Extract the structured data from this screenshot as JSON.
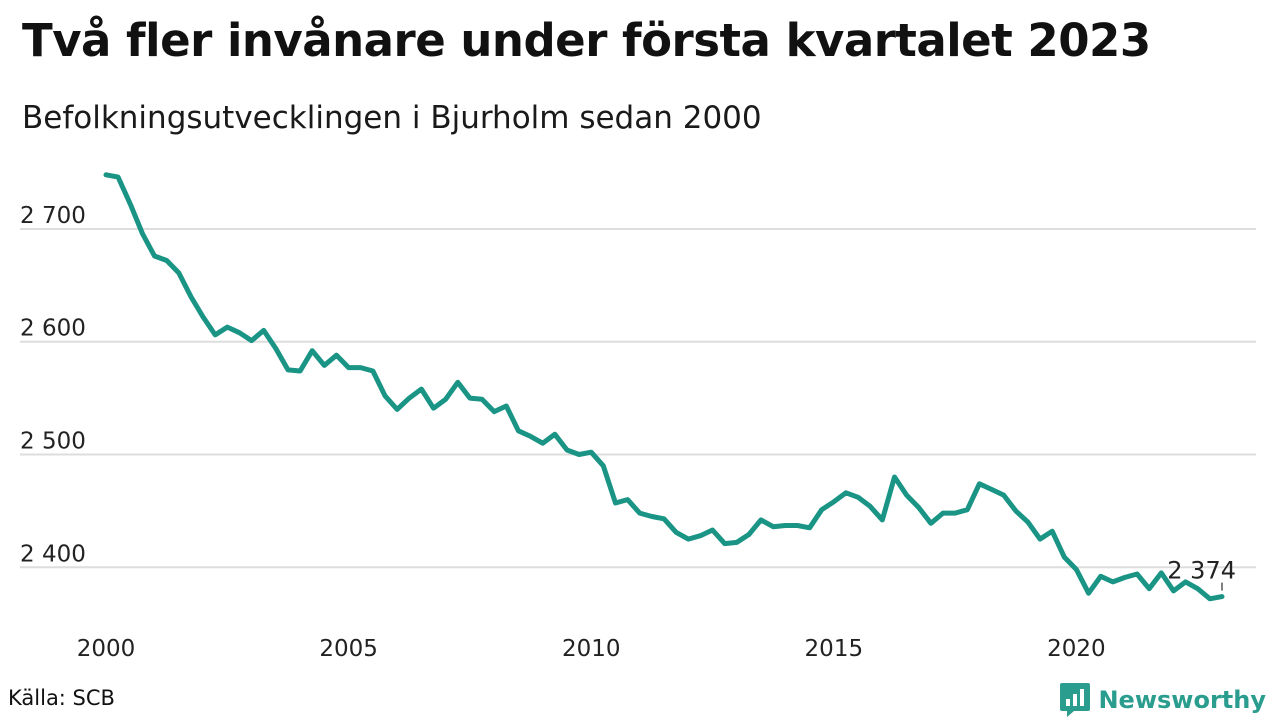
{
  "title": "Två fler invånare under första kvartalet 2023",
  "subtitle": "Befolkningsutvecklingen i Bjurholm sedan 2000",
  "source": "Källa: SCB",
  "brand": {
    "name": "Newsworthy",
    "icon": "newsworthy-logo-icon"
  },
  "colors": {
    "line": "#1a9485",
    "grid": "#dddddd",
    "brand": "#2a9d8f"
  },
  "chart_data": {
    "type": "line",
    "title": "Två fler invånare under första kvartalet 2023",
    "subtitle": "Befolkningsutvecklingen i Bjurholm sedan 2000",
    "xlabel": "",
    "ylabel": "",
    "xlim": [
      2000,
      2023
    ],
    "ylim": [
      2355,
      2770
    ],
    "xticks": [
      2000,
      2005,
      2010,
      2015,
      2020
    ],
    "xtick_labels": [
      "2000",
      "2005",
      "2010",
      "2015",
      "2020"
    ],
    "yticks": [
      2400,
      2500,
      2600,
      2700
    ],
    "ytick_labels": [
      "2 400",
      "2 500",
      "2 600",
      "2 700"
    ],
    "grid": "horizontal",
    "last_value_label": "2 374",
    "series": [
      {
        "x": [
          2000.0,
          2000.25,
          2000.5,
          2000.75,
          2001.0,
          2001.25,
          2001.5,
          2001.75,
          2002.0,
          2002.25,
          2002.5,
          2002.75,
          2003.0,
          2003.25,
          2003.5,
          2003.75,
          2004.0,
          2004.25,
          2004.5,
          2004.75,
          2005.0,
          2005.25,
          2005.5,
          2005.75,
          2006.0,
          2006.25,
          2006.5,
          2006.75,
          2007.0,
          2007.25,
          2007.5,
          2007.75,
          2008.0,
          2008.25,
          2008.5,
          2008.75,
          2009.0,
          2009.25,
          2009.5,
          2009.75,
          2010.0,
          2010.25,
          2010.5,
          2010.75,
          2011.0,
          2011.25,
          2011.5,
          2011.75,
          2012.0,
          2012.25,
          2012.5,
          2012.75,
          2013.0,
          2013.25,
          2013.5,
          2013.75,
          2014.0,
          2014.25,
          2014.5,
          2014.75,
          2015.0,
          2015.25,
          2015.5,
          2015.75,
          2016.0,
          2016.25,
          2016.5,
          2016.75,
          2017.0,
          2017.25,
          2017.5,
          2017.75,
          2018.0,
          2018.25,
          2018.5,
          2018.75,
          2019.0,
          2019.25,
          2019.5,
          2019.75,
          2020.0,
          2020.25,
          2020.5,
          2020.75,
          2021.0,
          2021.25,
          2021.5,
          2021.75,
          2022.0,
          2022.25,
          2022.5,
          2022.75,
          2023.0
        ],
        "values": [
          2748,
          2746,
          2722,
          2696,
          2676,
          2672,
          2661,
          2640,
          2622,
          2606,
          2613,
          2608,
          2601,
          2610,
          2594,
          2575,
          2574,
          2592,
          2579,
          2588,
          2577,
          2577,
          2574,
          2552,
          2540,
          2550,
          2558,
          2541,
          2549,
          2564,
          2550,
          2549,
          2538,
          2543,
          2521,
          2516,
          2510,
          2518,
          2504,
          2500,
          2502,
          2490,
          2457,
          2460,
          2448,
          2445,
          2443,
          2431,
          2425,
          2428,
          2433,
          2421,
          2422,
          2429,
          2442,
          2436,
          2437,
          2437,
          2435,
          2451,
          2458,
          2466,
          2462,
          2454,
          2442,
          2480,
          2464,
          2453,
          2439,
          2448,
          2448,
          2451,
          2474,
          2469,
          2464,
          2450,
          2440,
          2425,
          2432,
          2409,
          2398,
          2377,
          2392,
          2387,
          2391,
          2394,
          2381,
          2395,
          2379,
          2387,
          2381,
          2372,
          2374
        ]
      }
    ]
  }
}
